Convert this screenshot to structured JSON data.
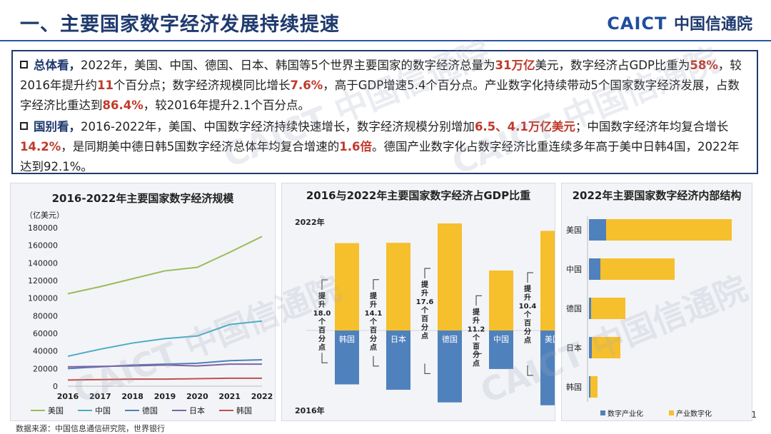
{
  "header": {
    "title": "一、主要国家数字经济发展持续提速",
    "logo_en": "CAICT",
    "logo_cn": "中国信通院"
  },
  "summary": {
    "p1": {
      "kw": "总体看，",
      "t1": "2022年，美国、中国、德国、日本、韩国等5个世界主要国家的数字经济总量为",
      "h1": "31万亿",
      "t2": "美元，数字经济占GDP比重为",
      "h2": "58%",
      "t3": "，较2016年提升约",
      "h3": "11",
      "t4": "个百分点；数字经济规模同比增长",
      "h4": "7.6%",
      "t5": "，高于GDP增速5.4个百分点。产业数字化持续带动5个国家数字经济发展，占数字经济比重达到",
      "h5": "86.4%",
      "t6": "，较2016年提升2.1个百分点。"
    },
    "p2": {
      "kw": "国别看，",
      "t1": "2016-2022年，美国、中国数字经济持续快速增长，数字经济规模分别增加",
      "h1": "6.5",
      "sep": "、",
      "h2": "4.1万亿美元",
      "t2": "；中国数字经济年均复合增长",
      "h3": "14.2%",
      "t3": "，是同期美中德日韩5国数字经济总体年均复合增速的",
      "h4": "1.6倍",
      "t4": "。德国产业数字化占数字经济比重连续多年高于美中日韩4国，2022年达到92.1%。"
    }
  },
  "watermark_text": "CAICT 中国信通院",
  "footnote": "数据来源：中国信息通信研究院，世界银行",
  "page_number": "1",
  "chart_data": [
    {
      "type": "line",
      "title": "2016-2022年主要国家数字经济规模",
      "ylabel": "（亿美元）",
      "x": [
        "2016",
        "2017",
        "2018",
        "2019",
        "2020",
        "2021",
        "2022"
      ],
      "ylim": [
        0,
        180000
      ],
      "yticks": [
        0,
        20000,
        40000,
        60000,
        80000,
        100000,
        120000,
        140000,
        160000,
        180000
      ],
      "series": [
        {
          "name": "美国",
          "color": "#9bbb59",
          "values": [
            105000,
            113000,
            122000,
            131000,
            135000,
            152000,
            170000
          ]
        },
        {
          "name": "中国",
          "color": "#4bacc6",
          "values": [
            34000,
            42000,
            49000,
            54000,
            57000,
            70000,
            74000
          ]
        },
        {
          "name": "德国",
          "color": "#4f81bd",
          "values": [
            20000,
            22000,
            24000,
            25000,
            26000,
            29000,
            30000
          ]
        },
        {
          "name": "日本",
          "color": "#8064a2",
          "values": [
            22000,
            22500,
            23000,
            24000,
            23000,
            25000,
            25000
          ]
        },
        {
          "name": "韩国",
          "color": "#c0504d",
          "values": [
            7000,
            7500,
            8000,
            8000,
            8500,
            9000,
            9000
          ]
        }
      ]
    },
    {
      "type": "bar",
      "title": "2016与2022年主要国家数字经济占GDP比重",
      "label_2022": "2022年",
      "label_2016": "2016年",
      "rise_prefix": "提升",
      "rise_suffix": "个百分点",
      "categories": [
        "韩国",
        "日本",
        "德国",
        "中国",
        "美国"
      ],
      "series": [
        {
          "name": "2022年",
          "color": "#f6bf2c",
          "values": [
            59.0,
            59.2,
            72.3,
            40.5,
            67.3
          ]
        },
        {
          "name": "2016年",
          "color": "#4f81bd",
          "values": [
            41.0,
            45.1,
            54.7,
            29.3,
            56.9
          ]
        }
      ],
      "rise": [
        "18.0",
        "14.1",
        "17.6",
        "11.2",
        "10.4"
      ]
    },
    {
      "type": "bar",
      "title": "2022年主要国家数字经济内部结构",
      "categories": [
        "美国",
        "中国",
        "德国",
        "日本",
        "韩国"
      ],
      "series": [
        {
          "name": "数字产业化",
          "color": "#4f81bd",
          "values": [
            12.0,
            8.0,
            1.5,
            2.0,
            1.0
          ]
        },
        {
          "name": "产业数字化",
          "color": "#f6bf2c",
          "values": [
            88.0,
            52.0,
            24.0,
            20.0,
            5.0
          ]
        }
      ]
    }
  ]
}
